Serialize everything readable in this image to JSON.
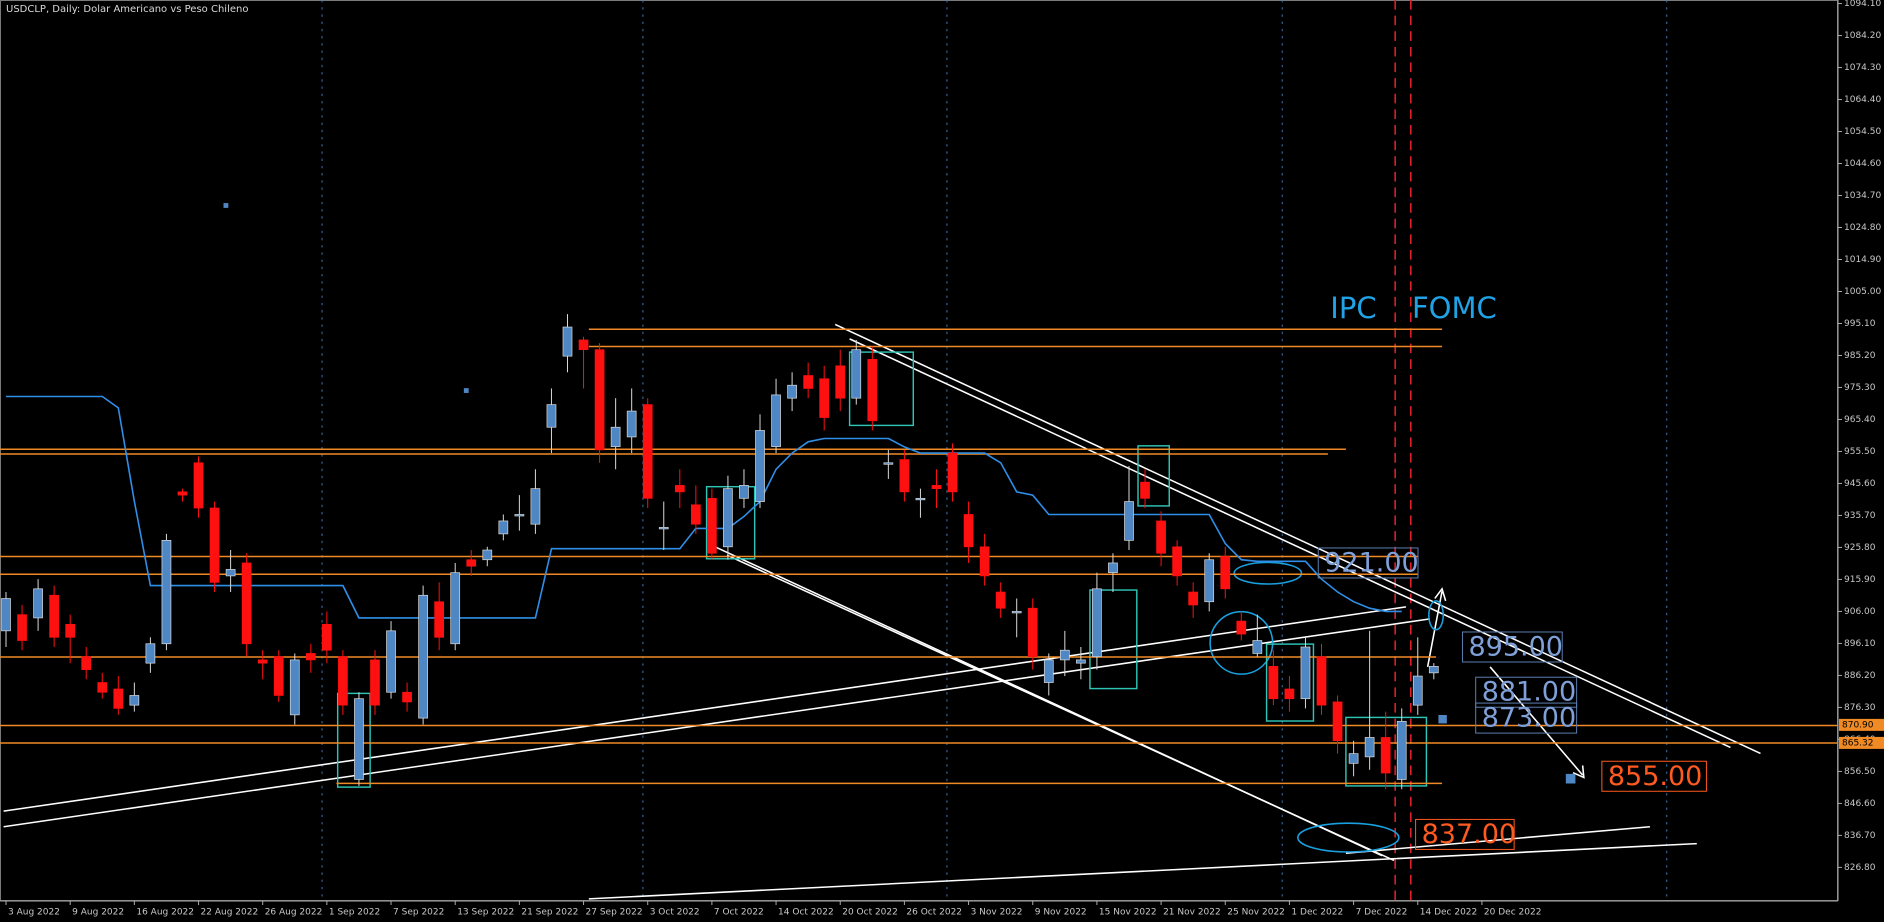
{
  "chart_data": {
    "type": "candlestick",
    "title": "USDCLP, Daily:  Dolar Americano vs Peso Chileno",
    "categories": [
      "3 Aug 2022",
      null,
      null,
      null,
      "9 Aug 2022",
      null,
      null,
      null,
      "16 Aug 2022",
      null,
      null,
      null,
      "22 Aug 2022",
      null,
      null,
      null,
      "26 Aug 2022",
      null,
      null,
      null,
      "1 Sep 2022",
      null,
      null,
      null,
      "7 Sep 2022",
      null,
      null,
      null,
      "13 Sep 2022",
      null,
      null,
      null,
      "21 Sep 2022",
      null,
      null,
      null,
      "27 Sep 2022",
      null,
      null,
      null,
      "3 Oct 2022",
      null,
      null,
      null,
      "7 Oct 2022",
      null,
      null,
      null,
      "14 Oct 2022",
      null,
      null,
      null,
      "20 Oct 2022",
      null,
      null,
      null,
      "26 Oct 2022",
      null,
      null,
      null,
      "3 Nov 2022",
      null,
      null,
      null,
      "9 Nov 2022",
      null,
      null,
      null,
      "15 Nov 2022",
      null,
      null,
      null,
      "21 Nov 2022",
      null,
      null,
      null,
      "25 Nov 2022",
      null,
      null,
      null,
      "1 Dec 2022",
      null,
      null,
      null,
      "7 Dec 2022",
      null,
      null,
      null,
      "14 Dec 2022",
      null,
      null,
      null,
      "20 Dec 2022"
    ],
    "open": [
      900,
      905,
      904,
      911,
      902,
      892,
      884,
      882,
      877,
      890,
      896,
      943,
      952,
      938,
      917,
      921,
      891,
      892,
      874,
      893,
      902,
      892,
      854,
      891,
      881,
      881,
      873,
      909,
      896,
      922,
      922,
      930,
      936,
      933,
      963,
      985,
      990,
      987,
      957,
      960,
      970,
      932,
      945,
      939,
      941,
      926,
      941,
      940,
      957,
      972,
      979,
      978,
      982,
      972,
      984,
      952,
      953,
      941,
      945,
      955,
      936,
      926,
      912,
      906,
      907,
      884,
      891,
      890,
      892,
      918,
      928,
      946,
      934,
      926,
      912,
      909,
      923,
      903,
      893,
      889,
      882,
      879,
      892,
      878,
      859,
      861,
      867,
      854,
      877,
      887,
      null,
      null,
      null
    ],
    "high": [
      912,
      908,
      916,
      914,
      905,
      895,
      887,
      886,
      884,
      898,
      930,
      944,
      954,
      940,
      925,
      924,
      894,
      894,
      893,
      896,
      906,
      894,
      881,
      894,
      903,
      884,
      914,
      915,
      921,
      925,
      926,
      936,
      942,
      950,
      975,
      998,
      991,
      989,
      972,
      975,
      972,
      940,
      950,
      945,
      944,
      948,
      950,
      967,
      978,
      980,
      983,
      982,
      987,
      990,
      988,
      956,
      956,
      944,
      950,
      958,
      940,
      930,
      915,
      910,
      910,
      893,
      900,
      895,
      918,
      924,
      951,
      950,
      937,
      928,
      915,
      924,
      926,
      906,
      905,
      894,
      886,
      898,
      896,
      880,
      866,
      900,
      875,
      876,
      898,
      890,
      null,
      null,
      null
    ],
    "low": [
      895,
      894,
      900,
      895,
      890,
      885,
      879,
      874,
      875,
      887,
      894,
      940,
      935,
      912,
      912,
      892,
      885,
      878,
      871,
      887,
      890,
      874,
      852,
      874,
      879,
      875,
      871,
      894,
      894,
      917,
      920,
      928,
      931,
      930,
      955,
      980,
      975,
      952,
      950,
      955,
      938,
      925,
      938,
      930,
      922,
      922,
      938,
      938,
      955,
      968,
      972,
      962,
      968,
      970,
      962,
      947,
      940,
      935,
      938,
      940,
      921,
      914,
      904,
      898,
      888,
      880,
      886,
      885,
      888,
      912,
      925,
      938,
      920,
      914,
      904,
      906,
      910,
      897,
      892,
      877,
      875,
      876,
      874,
      862,
      855,
      857,
      851,
      851,
      874,
      885,
      null,
      null,
      null
    ],
    "close": [
      910,
      897,
      913,
      898,
      898,
      888,
      881,
      876,
      880,
      896,
      928,
      942,
      938,
      915,
      919,
      896,
      890,
      880,
      891,
      891,
      894,
      877,
      879,
      877,
      900,
      878,
      911,
      898,
      918,
      920,
      925,
      934,
      936,
      944,
      970,
      994,
      987,
      956,
      963,
      968,
      941,
      932,
      943,
      933,
      924,
      944,
      945,
      962,
      973,
      976,
      975,
      966,
      972,
      987,
      965,
      952,
      943,
      941,
      944,
      943,
      926,
      917,
      907,
      906,
      892,
      891,
      894,
      891,
      913,
      921,
      940,
      941,
      924,
      917,
      908,
      922,
      913,
      899,
      897,
      879,
      879,
      895,
      877,
      866,
      862,
      867,
      856,
      872,
      886,
      889,
      null,
      null,
      null
    ],
    "up_color": "#4f87c4",
    "down_color": "#ff1010",
    "kijun": {
      "color": "#2f8fe8",
      "values": [
        972.5,
        972.5,
        972.5,
        972.5,
        972.5,
        972.5,
        972.5,
        969,
        940,
        914,
        914,
        914,
        914,
        914,
        914,
        914,
        914,
        914,
        914,
        914,
        914,
        914,
        904,
        904,
        904,
        904,
        904,
        904,
        904,
        904,
        904,
        904,
        904,
        904,
        925.4,
        925.4,
        925.4,
        925.4,
        925.4,
        925.4,
        925.4,
        925.4,
        925.4,
        931.7,
        931.7,
        931.7,
        935.4,
        940,
        950,
        955,
        958.5,
        959.5,
        959.5,
        959.5,
        959.5,
        959.5,
        956.9,
        955,
        955,
        955,
        955,
        955,
        952,
        943,
        942,
        936,
        936,
        936,
        936,
        936,
        936,
        936,
        936,
        936,
        936,
        936,
        927,
        922,
        921.5,
        921.5,
        921.5,
        921.5,
        916,
        912,
        909,
        907,
        906,
        906,
        null,
        null,
        null,
        null,
        null
      ]
    },
    "levels": {
      "color": "#f08a24",
      "values": [
        993.3,
        988,
        956.2,
        954.7,
        923,
        917.5,
        891.9,
        870.7,
        865.3,
        852.8
      ]
    },
    "price_tags": [
      {
        "value": 870.9,
        "label": "870.90"
      },
      {
        "value": 865.32,
        "label": "865.32"
      }
    ],
    "events": [
      "IPC",
      "FOMC"
    ],
    "targets": [
      {
        "value": 921,
        "label": "921.00"
      },
      {
        "value": 895,
        "label": "895.00"
      },
      {
        "value": 881,
        "label": "881.00"
      },
      {
        "value": 873,
        "label": "873.00"
      },
      {
        "value": 855,
        "label": "855.00"
      },
      {
        "value": 837,
        "label": "837.00"
      }
    ],
    "ylim": [
      816.4,
      1095.2
    ],
    "yticks": [
      {
        "value": 1094.1,
        "label": "1094.10"
      },
      {
        "value": 1084.2,
        "label": "1084.20"
      },
      {
        "value": 1074.3,
        "label": "1074.30"
      },
      {
        "value": 1064.4,
        "label": "1064.40"
      },
      {
        "value": 1054.5,
        "label": "1054.50"
      },
      {
        "value": 1044.6,
        "label": "1044.60"
      },
      {
        "value": 1034.7,
        "label": "1034.70"
      },
      {
        "value": 1024.8,
        "label": "1024.80"
      },
      {
        "value": 1014.9,
        "label": "1014.90"
      },
      {
        "value": 1005,
        "label": "1005.00"
      },
      {
        "value": 995.1,
        "label": "995.10"
      },
      {
        "value": 985.2,
        "label": "985.20"
      },
      {
        "value": 975.3,
        "label": "975.30"
      },
      {
        "value": 965.4,
        "label": "965.40"
      },
      {
        "value": 955.5,
        "label": "955.50"
      },
      {
        "value": 945.6,
        "label": "945.60"
      },
      {
        "value": 935.7,
        "label": "935.70"
      },
      {
        "value": 925.8,
        "label": "925.80"
      },
      {
        "value": 915.9,
        "label": "915.90"
      },
      {
        "value": 906,
        "label": "906.00"
      },
      {
        "value": 896.1,
        "label": "896.10"
      },
      {
        "value": 886.2,
        "label": "886.20"
      },
      {
        "value": 876.3,
        "label": "876.30"
      },
      {
        "value": 866.4,
        "label": "866.40"
      },
      {
        "value": 856.5,
        "label": "856.50"
      },
      {
        "value": 846.6,
        "label": "846.60"
      },
      {
        "value": 836.7,
        "label": "836.70"
      },
      {
        "value": 826.8,
        "label": "826.80"
      }
    ],
    "grid": false
  }
}
